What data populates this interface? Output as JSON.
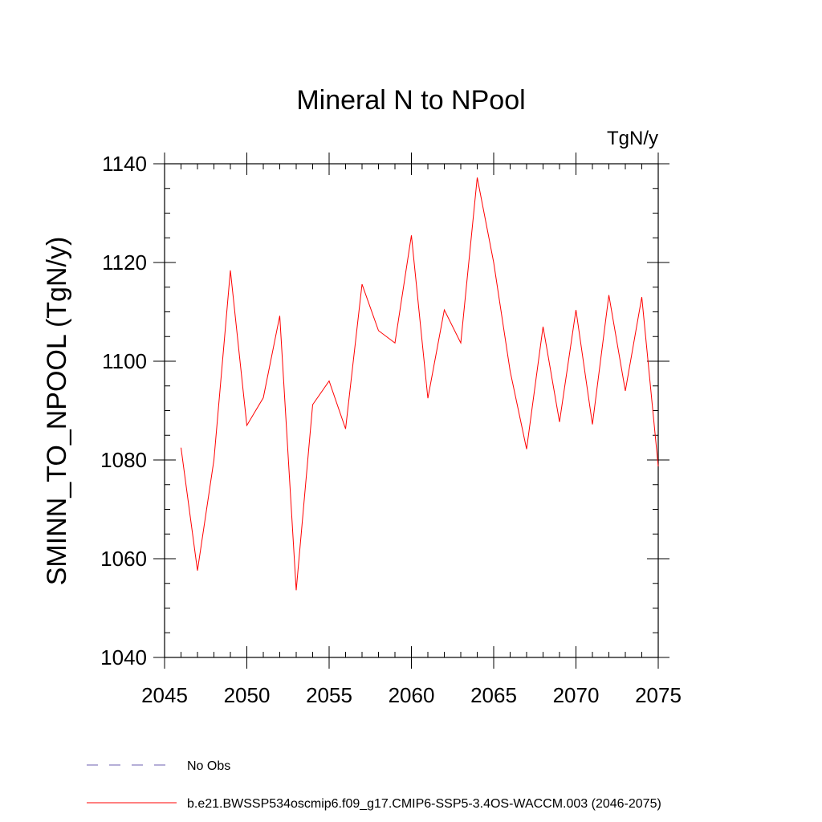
{
  "chart_data": {
    "type": "line",
    "title": "Mineral N to NPool",
    "units": "TgN/y",
    "ylabel": "SMINN_TO_NPOOL  (TgN/y)",
    "xlabel": "",
    "xlim": [
      2045,
      2075
    ],
    "ylim": [
      1040,
      1140
    ],
    "x_major_ticks": [
      2045,
      2050,
      2055,
      2060,
      2065,
      2070,
      2075
    ],
    "x_minor_step": 1,
    "y_major_ticks": [
      1040,
      1060,
      1080,
      1100,
      1120,
      1140
    ],
    "y_minor_step": 5,
    "series": [
      {
        "name": "b.e21.BWSSP534oscmip6.f09_g17.CMIP6-SSP5-3.4OS-WACCM.003 (2046-2075)",
        "color": "#ff0000",
        "style": "solid",
        "x": [
          2046,
          2047,
          2048,
          2049,
          2050,
          2051,
          2052,
          2053,
          2054,
          2055,
          2056,
          2057,
          2058,
          2059,
          2060,
          2061,
          2062,
          2063,
          2064,
          2065,
          2066,
          2067,
          2068,
          2069,
          2070,
          2071,
          2072,
          2073,
          2074,
          2075
        ],
        "values": [
          1082.5,
          1057.6,
          1080.0,
          1118.4,
          1087.0,
          1092.6,
          1109.2,
          1053.6,
          1091.2,
          1096.0,
          1086.3,
          1115.6,
          1106.2,
          1103.7,
          1125.5,
          1092.5,
          1110.4,
          1103.7,
          1137.2,
          1120.0,
          1098.0,
          1082.2,
          1107.0,
          1087.7,
          1110.4,
          1087.2,
          1113.4,
          1094.0,
          1113.0,
          1078.7
        ]
      }
    ],
    "legend": {
      "position": "bottom-left",
      "entries": [
        {
          "label": "No Obs",
          "color": "#6b5fb0",
          "style": "dashed"
        },
        {
          "label": "b.e21.BWSSP534oscmip6.f09_g17.CMIP6-SSP5-3.4OS-WACCM.003 (2046-2075)",
          "color": "#ff0000",
          "style": "solid"
        }
      ]
    }
  }
}
